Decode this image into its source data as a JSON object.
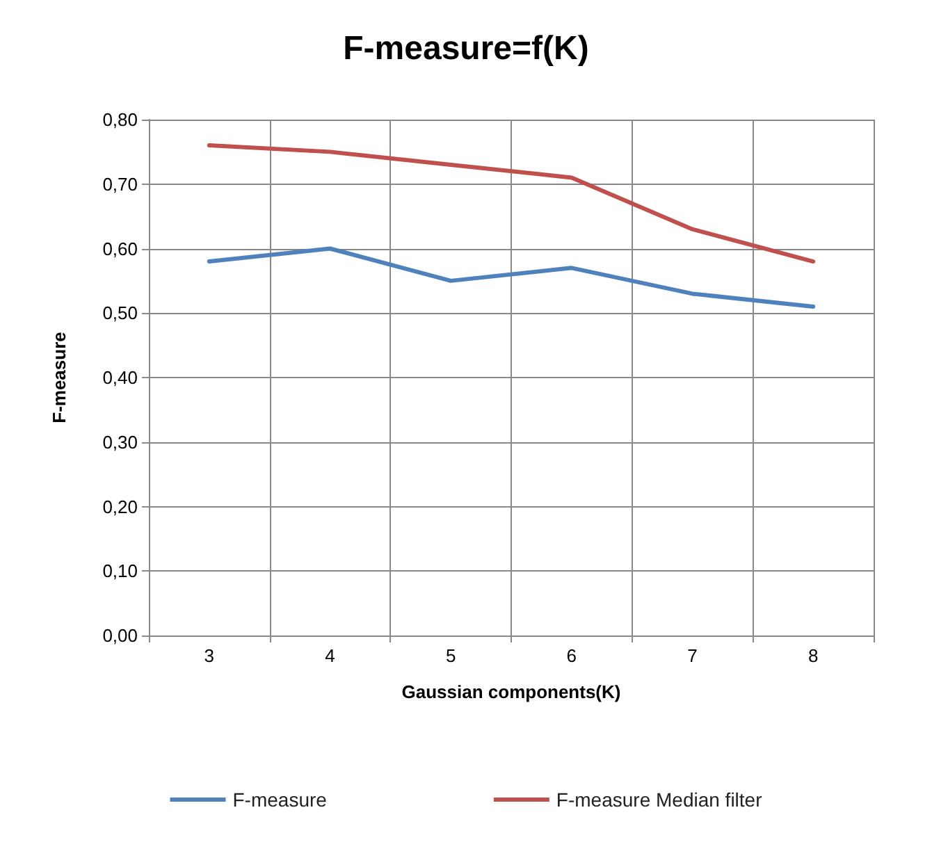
{
  "chart_data": {
    "type": "line",
    "title": "F-measure=f(K)",
    "xlabel": "Gaussian components(K)",
    "ylabel": "F-measure",
    "categories": [
      "3",
      "4",
      "5",
      "6",
      "7",
      "8"
    ],
    "series": [
      {
        "name": "F-measure",
        "color": "#4f81bd",
        "values": [
          0.58,
          0.6,
          0.55,
          0.57,
          0.53,
          0.51
        ]
      },
      {
        "name": "F-measure Median filter",
        "color": "#c0504d",
        "values": [
          0.76,
          0.75,
          0.73,
          0.71,
          0.63,
          0.58
        ]
      }
    ],
    "ylim": [
      0,
      0.8
    ],
    "yticks": [
      {
        "value": 0,
        "label": "0,00"
      },
      {
        "value": 0.1,
        "label": "0,10"
      },
      {
        "value": 0.2,
        "label": "0,20"
      },
      {
        "value": 0.3,
        "label": "0,30"
      },
      {
        "value": 0.4,
        "label": "0,40"
      },
      {
        "value": 0.5,
        "label": "0,50"
      },
      {
        "value": 0.6,
        "label": "0,60"
      },
      {
        "value": 0.7,
        "label": "0,70"
      },
      {
        "value": 0.8,
        "label": "0,80"
      }
    ],
    "grid": true,
    "legend": "bottom",
    "marker": "none",
    "line_style": "solid"
  }
}
